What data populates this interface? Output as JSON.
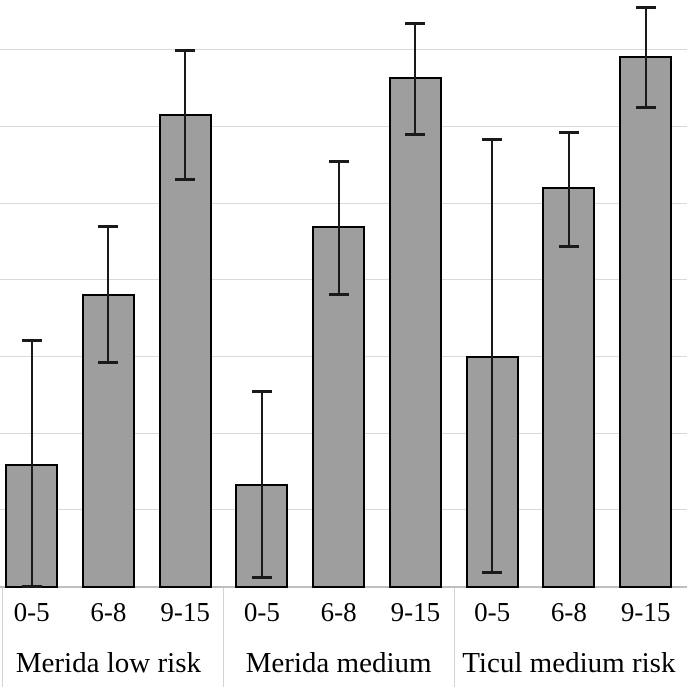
{
  "chart_data": {
    "type": "bar",
    "title": "",
    "xlabel": "",
    "ylabel": "",
    "y_axis_labels_visible": false,
    "value_units": "gridline units (y-axis scale cropped out of the screenshot; 1 = one gridline spacing above baseline)",
    "ylim": [
      0,
      7.66
    ],
    "gridline_values": [
      1,
      2,
      3,
      4,
      5,
      6,
      7
    ],
    "grid": true,
    "legend": null,
    "categories": [
      "0-5",
      "6-8",
      "9-15"
    ],
    "groups": [
      {
        "label": "Merida low risk",
        "bars": [
          {
            "category": "0-5",
            "value": 1.58,
            "err_low": 0.0,
            "err_high": 3.22
          },
          {
            "category": "6-8",
            "value": 3.8,
            "err_low": 2.92,
            "err_high": 4.71
          },
          {
            "category": "9-15",
            "value": 6.15,
            "err_low": 5.31,
            "err_high": 7.0
          }
        ]
      },
      {
        "label": "Merida medium",
        "bars": [
          {
            "category": "0-5",
            "value": 1.33,
            "err_low": 0.12,
            "err_high": 2.56
          },
          {
            "category": "6-8",
            "value": 4.69,
            "err_low": 3.81,
            "err_high": 5.56
          },
          {
            "category": "9-15",
            "value": 6.63,
            "err_low": 5.9,
            "err_high": 7.36
          }
        ]
      },
      {
        "label": "Ticul medium risk",
        "bars": [
          {
            "category": "0-5",
            "value": 3.0,
            "err_low": 0.18,
            "err_high": 5.85
          },
          {
            "category": "6-8",
            "value": 5.2,
            "err_low": 4.43,
            "err_high": 5.94
          },
          {
            "category": "9-15",
            "value": 6.91,
            "err_low": 6.25,
            "err_high": 7.57
          }
        ]
      }
    ],
    "colors": {
      "background": "#ffffff",
      "bar_fill": "#9e9e9e",
      "bar_border": "#000000",
      "error_bar": "#1a1a1a",
      "gridline": "#d9d9d9",
      "axis_line": "#bfbfbf",
      "separator": "#d3d3d3",
      "text": "#000000"
    }
  }
}
